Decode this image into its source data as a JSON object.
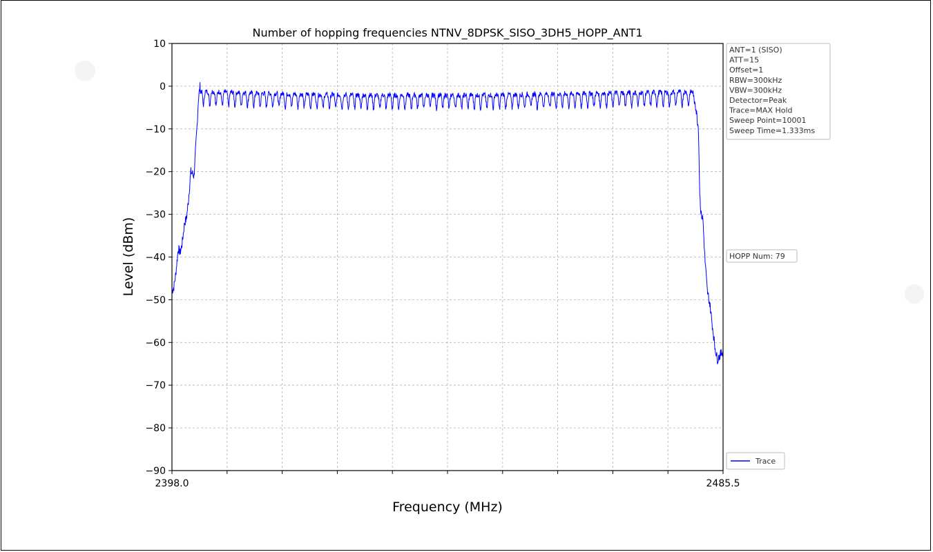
{
  "chart_data": {
    "type": "line",
    "title": "Number of hopping frequencies NTNV_8DPSK_SISO_3DH5_HOPP_ANT1",
    "xlabel": "Frequency (MHz)",
    "ylabel": "Level (dBm)",
    "xlim": [
      2398.0,
      2485.5
    ],
    "ylim": [
      -90,
      10
    ],
    "x_tick_labels": [
      "2398.0",
      "2485.5"
    ],
    "x_minor_ticks": 9,
    "y_ticks": [
      10,
      0,
      -10,
      -20,
      -30,
      -40,
      -50,
      -60,
      -70,
      -80,
      -90
    ],
    "y_tick_labels": [
      "10",
      "0",
      "−10",
      "−20",
      "−30",
      "−40",
      "−50",
      "−60",
      "−70",
      "−80",
      "−90"
    ],
    "grid": true,
    "legend_placement": "bottom-right",
    "series": [
      {
        "name": "Trace",
        "color": "#0000ff",
        "hop_channels": 79,
        "x": [
          2398.0,
          2398.3,
          2398.6,
          2399.0,
          2399.3,
          2399.6,
          2400.0,
          2400.3,
          2400.6,
          2401.0,
          2401.5,
          2402.0,
          2402.2,
          2402.5,
          2403.0,
          2481.0,
          2481.6,
          2481.8,
          2482.0,
          2482.3,
          2482.6,
          2483.0,
          2483.4,
          2483.8,
          2484.2,
          2484.6,
          2485.0,
          2485.5
        ],
        "values": [
          -48,
          -47,
          -44,
          -38,
          -39,
          -37,
          -32,
          -31,
          -27,
          -20,
          -21,
          -9,
          -3,
          0.5,
          -1,
          -3,
          -10,
          -25,
          -30,
          -31,
          -40,
          -48,
          -51,
          -56,
          -61,
          -64,
          -63,
          -62
        ]
      }
    ],
    "info_box": [
      "ANT=1 (SISO)",
      "ATT=15",
      "Offset=1",
      "RBW=300kHz",
      "VBW=300kHz",
      "Detector=Peak",
      "Trace=MAX Hold",
      "Sweep Point=10001",
      "Sweep Time=1.333ms"
    ],
    "annotation": "HOPP Num: 79",
    "legend": [
      "Trace"
    ]
  }
}
